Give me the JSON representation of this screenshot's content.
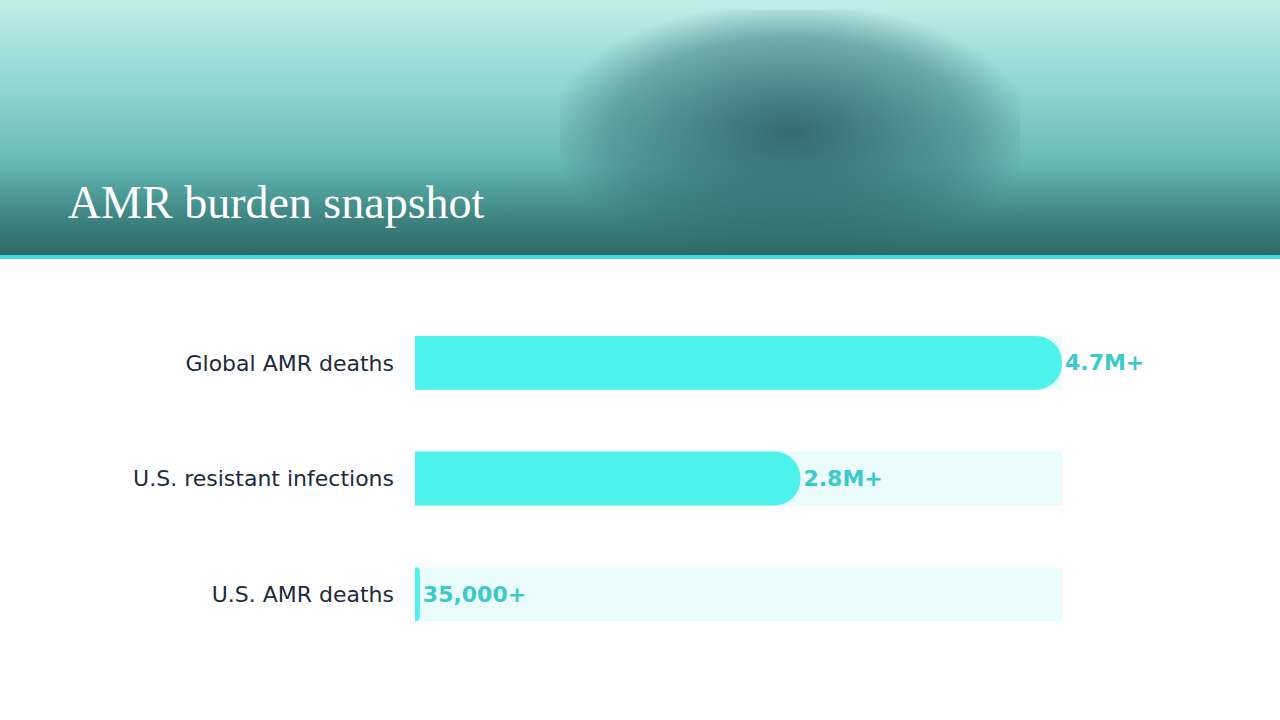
{
  "chart_data": {
    "type": "bar",
    "title": "AMR burden snapshot",
    "orientation": "horizontal",
    "categories": [
      "Global AMR deaths",
      "U.S. resistant infections",
      "U.S. AMR deaths"
    ],
    "values": [
      4700000,
      2800000,
      35000
    ],
    "value_labels": [
      "4.7M+",
      "2.8M+",
      "35,000+"
    ],
    "data_labels": true,
    "xlim": [
      0,
      4700000
    ],
    "tick_labels": "y",
    "grid": false,
    "color": "#4df2ea"
  }
}
